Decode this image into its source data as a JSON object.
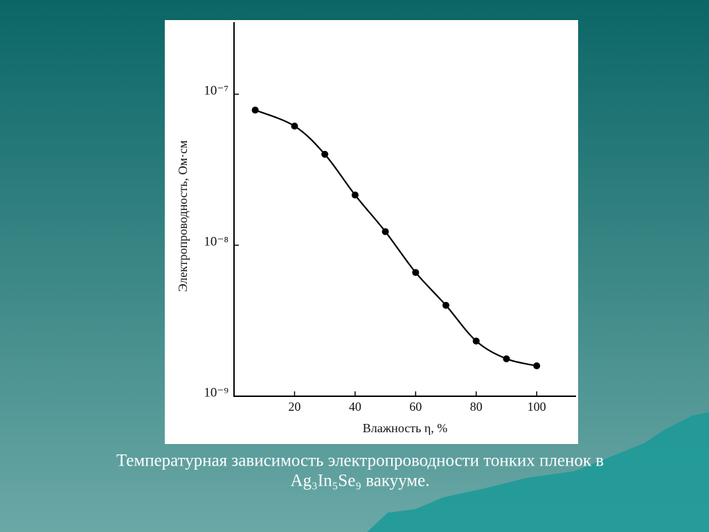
{
  "chart_data": {
    "type": "line",
    "x_label": "Влажность η, %",
    "y_label": "Электропроводность, Ом·см",
    "x": [
      7,
      20,
      30,
      40,
      50,
      60,
      70,
      80,
      90,
      100
    ],
    "values": [
      7.85e-08,
      6.15e-08,
      4e-08,
      2.15e-08,
      1.23e-08,
      6.6e-09,
      4e-09,
      2.32e-09,
      1.77e-09,
      1.59e-09
    ],
    "color": "#000000",
    "xlim": [
      0,
      113
    ],
    "xticks": [
      20,
      40,
      60,
      80,
      100
    ],
    "ylim": [
      1e-09,
      3e-07
    ],
    "yticks": [
      {
        "value": 1e-09,
        "label": "10⁻⁹"
      },
      {
        "value": 1e-08,
        "label": "10⁻⁸"
      },
      {
        "value": 1e-07,
        "label": "10⁻⁷"
      }
    ],
    "log_y": true,
    "caption": [
      "Температурная зависимость электропроводности тонких пленок   в",
      "Ag₃In₅Se₉ вакууме."
    ]
  }
}
